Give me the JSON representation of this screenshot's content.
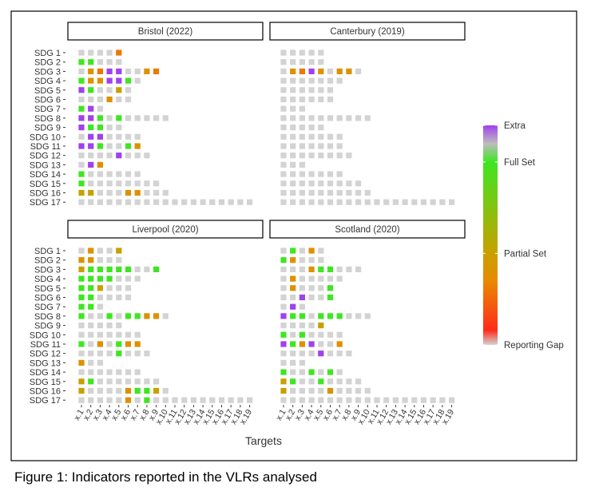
{
  "chart_data": [
    {
      "type": "heatmap",
      "title": "Bristol (2022)",
      "values": [
        [
          0,
          0,
          0,
          0,
          0.3
        ],
        [
          1,
          1,
          0,
          0,
          0
        ],
        [
          0,
          0.4,
          0.3,
          1.2,
          1.2,
          0,
          0,
          0.4,
          0.3
        ],
        [
          1,
          0.4,
          0.4,
          1.2,
          1.2,
          1,
          0
        ],
        [
          1.2,
          1,
          0,
          0,
          0.5,
          0
        ],
        [
          0,
          0,
          0,
          0.4,
          0,
          0
        ],
        [
          1,
          1.2,
          0
        ],
        [
          1.2,
          1.2,
          1,
          0,
          1,
          0,
          0,
          0,
          0,
          0
        ],
        [
          1.2,
          1,
          1,
          0,
          0
        ],
        [
          0,
          1.2,
          1.2,
          0,
          0,
          0,
          0
        ],
        [
          1.2,
          1.2,
          1,
          0,
          0,
          1,
          0.4
        ],
        [
          0,
          0,
          0,
          0,
          1.2,
          0,
          0,
          0
        ],
        [
          0,
          1.2,
          0.4
        ],
        [
          1,
          0,
          0,
          0,
          0,
          0,
          0
        ],
        [
          1,
          0,
          0,
          0,
          0,
          0,
          0,
          0,
          0
        ],
        [
          0.5,
          0.5,
          0,
          0,
          0,
          0.4,
          0.4,
          0,
          0,
          0
        ],
        [
          0,
          0,
          0,
          0,
          0,
          0,
          0,
          0,
          0,
          0,
          0,
          0,
          0,
          0,
          0,
          0,
          0,
          0,
          0
        ]
      ]
    },
    {
      "type": "heatmap",
      "title": "Canterbury (2019)",
      "values": [
        [
          0,
          0,
          0,
          0,
          0
        ],
        [
          0,
          0,
          0,
          0,
          0
        ],
        [
          0,
          0.4,
          0.3,
          1.2,
          0.4,
          0,
          0.4,
          0.4,
          0
        ],
        [
          0,
          0,
          0,
          0,
          0,
          0,
          0
        ],
        [
          0,
          0,
          0,
          0,
          0,
          0
        ],
        [
          0,
          0,
          0,
          0,
          0,
          0
        ],
        [
          0,
          0,
          0
        ],
        [
          0,
          0,
          0,
          0,
          0,
          0,
          0,
          0,
          0,
          0
        ],
        [
          0,
          0,
          0,
          0,
          0
        ],
        [
          0,
          0,
          0,
          0,
          0,
          0,
          0
        ],
        [
          0,
          0,
          0,
          0,
          0,
          0,
          0
        ],
        [
          0,
          0,
          0,
          0,
          0,
          0,
          0,
          0
        ],
        [
          0,
          0,
          0
        ],
        [
          0,
          0,
          0,
          0,
          0,
          0,
          0
        ],
        [
          0,
          0,
          0,
          0,
          0,
          0,
          0,
          0,
          0
        ],
        [
          0,
          0,
          0,
          0,
          0,
          0,
          0,
          0,
          0,
          0
        ],
        [
          0,
          0,
          0,
          0,
          0,
          0,
          0,
          0,
          0,
          0,
          0,
          0,
          0,
          0,
          0,
          0,
          0,
          0,
          0
        ]
      ]
    },
    {
      "type": "heatmap",
      "title": "Liverpool (2020)",
      "values": [
        [
          0,
          0.4,
          0,
          0,
          0.5
        ],
        [
          0.4,
          0.4,
          0,
          0,
          0
        ],
        [
          0.5,
          1,
          1,
          1,
          1,
          1,
          0,
          0,
          1
        ],
        [
          1,
          1,
          1,
          1,
          0,
          0,
          0
        ],
        [
          1,
          1,
          0.5,
          0,
          0,
          0
        ],
        [
          1,
          1,
          0,
          0,
          0,
          0
        ],
        [
          1,
          1,
          0
        ],
        [
          1,
          0,
          0,
          1,
          0,
          1,
          1,
          0.4,
          0.4,
          0
        ],
        [
          0,
          0,
          0,
          0,
          0
        ],
        [
          0,
          0,
          0,
          0,
          0,
          0,
          0
        ],
        [
          1,
          0,
          0.4,
          0,
          1,
          0.4,
          0.4
        ],
        [
          0,
          0,
          0,
          0,
          1,
          0,
          0,
          0
        ],
        [
          0.4,
          0,
          0
        ],
        [
          0,
          0,
          0,
          0,
          0,
          0,
          0
        ],
        [
          0.5,
          1,
          0,
          0,
          0,
          0,
          0,
          0,
          0
        ],
        [
          0.5,
          0,
          0,
          0,
          0,
          0.4,
          1,
          1,
          0.5,
          0
        ],
        [
          0,
          0,
          0,
          0,
          0,
          0.4,
          0,
          1,
          0,
          0,
          0,
          0,
          0,
          0,
          0,
          0,
          0,
          0,
          0
        ]
      ]
    },
    {
      "type": "heatmap",
      "title": "Scotland (2020)",
      "values": [
        [
          0,
          1,
          0,
          0.4,
          0
        ],
        [
          1,
          0.4,
          0,
          0,
          0
        ],
        [
          0,
          0,
          0,
          0.4,
          1,
          1,
          0,
          0,
          0
        ],
        [
          0,
          0.4,
          0,
          0,
          0,
          0,
          0
        ],
        [
          0,
          0.4,
          0,
          0,
          0,
          1
        ],
        [
          0,
          0,
          1.2,
          0,
          0,
          1
        ],
        [
          0,
          1.2,
          0
        ],
        [
          1.2,
          1,
          1,
          0,
          1,
          1,
          1,
          0,
          0,
          0
        ],
        [
          0,
          0,
          0,
          0,
          0.5
        ],
        [
          1,
          0,
          1,
          0,
          0,
          0,
          0
        ],
        [
          1.2,
          1,
          0.4,
          1.2,
          0,
          0,
          0.4
        ],
        [
          0,
          0,
          0,
          0,
          1.2,
          0,
          0,
          0
        ],
        [
          0,
          0,
          0
        ],
        [
          1,
          0,
          0,
          1,
          0,
          1,
          0
        ],
        [
          0.5,
          1,
          0,
          0,
          1,
          0,
          0,
          0,
          0
        ],
        [
          0.5,
          0,
          0,
          0,
          0,
          0.4,
          0,
          0,
          0,
          0
        ],
        [
          0,
          0,
          0,
          0,
          0,
          0,
          0,
          0,
          0,
          0,
          0,
          0,
          0,
          0,
          0,
          0,
          0,
          0,
          0
        ]
      ]
    }
  ],
  "axes": {
    "y_categories": [
      "SDG 1",
      "SDG 2",
      "SDG 3",
      "SDG 4",
      "SDG 5",
      "SDG 6",
      "SDG 7",
      "SDG 8",
      "SDG 9",
      "SDG 10",
      "SDG 11",
      "SDG 12",
      "SDG 13",
      "SDG 14",
      "SDG 15",
      "SDG 16",
      "SDG 17"
    ],
    "x_categories": [
      "x.1",
      "x.2",
      "x.3",
      "x.4",
      "x.5",
      "x.6",
      "x.7",
      "x.8",
      "x.9",
      "x.10",
      "x.11",
      "x.12",
      "x.13",
      "x.14",
      "x.15",
      "x.16",
      "x.17",
      "x.18",
      "x.19"
    ],
    "x_label": "Targets"
  },
  "legend": {
    "ylim": [
      0,
      1.2
    ],
    "yticks": [
      {
        "value": 1.2,
        "label": "Extra"
      },
      {
        "value": 1,
        "label": "Full Set"
      },
      {
        "value": 0.5,
        "label": "Partial Set"
      },
      {
        "value": 0,
        "label": "Reporting Gap"
      }
    ],
    "colorscale": [
      [
        0,
        "#d3d3d3"
      ],
      [
        0.08,
        "#ff2a1a"
      ],
      [
        0.35,
        "#e88a00"
      ],
      [
        0.5,
        "#c8a000"
      ],
      [
        1,
        "#3ee622"
      ],
      [
        1.1,
        "#bdbdbd"
      ],
      [
        1.2,
        "#a040f0"
      ]
    ]
  },
  "caption": "Figure 1: Indicators reported in the VLRs analysed"
}
